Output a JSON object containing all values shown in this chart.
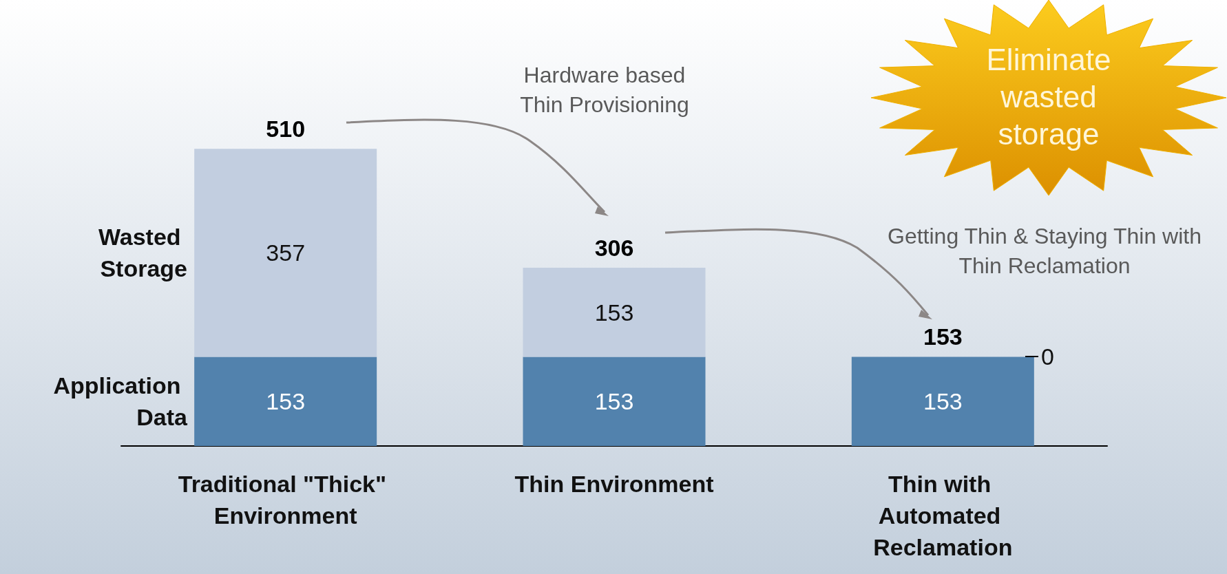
{
  "chart_data": {
    "type": "bar",
    "stacked": true,
    "data_labels": true,
    "legend": false,
    "categories": [
      "Traditional \"Thick\" Environment",
      "Thin Environment",
      "Thin with Automated Reclamation"
    ],
    "series": [
      {
        "name": "Application Data",
        "color": "#5282ad",
        "values": [
          153,
          153,
          153
        ]
      },
      {
        "name": "Wasted Storage",
        "color": "#c2cee0",
        "values": [
          357,
          153,
          null
        ]
      }
    ],
    "totals": [
      "510",
      "306",
      "153"
    ],
    "annotations": [
      "Hardware based Thin Provisioning",
      "Getting Thin & Staying Thin with Thin Reclamation",
      "Eliminate wasted storage",
      "0"
    ]
  }
}
